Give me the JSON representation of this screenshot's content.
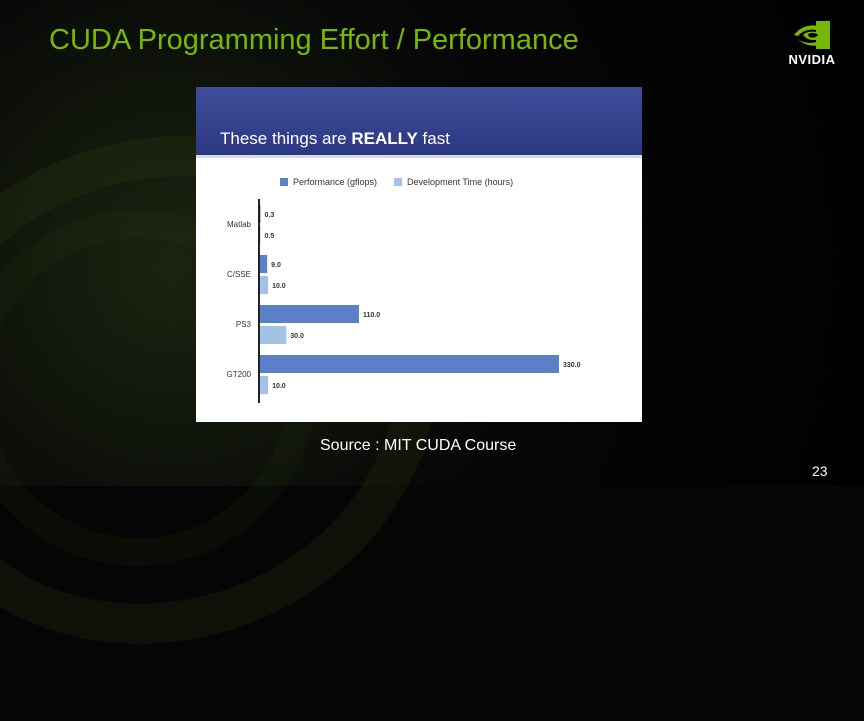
{
  "slide": {
    "title": "CUDA Programming Effort / Performance",
    "source": "Source : MIT CUDA Course",
    "page_number": "23",
    "logo_text": "NVIDIA"
  },
  "colors": {
    "title": "#76b900",
    "performance": "#5b80c8",
    "development_time": "#a3c3e6",
    "banner": "#3a4690"
  },
  "chart_data": {
    "type": "bar",
    "orientation": "horizontal",
    "title_prefix": "These things are ",
    "title_emphasis": "REALLY",
    "title_suffix": " fast",
    "categories": [
      "Matlab",
      "C/SSE",
      "PS3",
      "GT200"
    ],
    "series": [
      {
        "name": "Performance (gflops)",
        "values": [
          0.3,
          9.0,
          110.0,
          330.0
        ],
        "labels": [
          "0.3",
          "9.0",
          "110.0",
          "330.0"
        ],
        "color": "#5b80c8"
      },
      {
        "name": "Development Time (hours)",
        "values": [
          0.5,
          10.0,
          30.0,
          10.0
        ],
        "labels": [
          "0.5",
          "10.0",
          "30.0",
          "10.0"
        ],
        "color": "#a3c3e6"
      }
    ],
    "xlim": [
      0,
      330
    ],
    "legend_position": "top",
    "grid": false
  }
}
